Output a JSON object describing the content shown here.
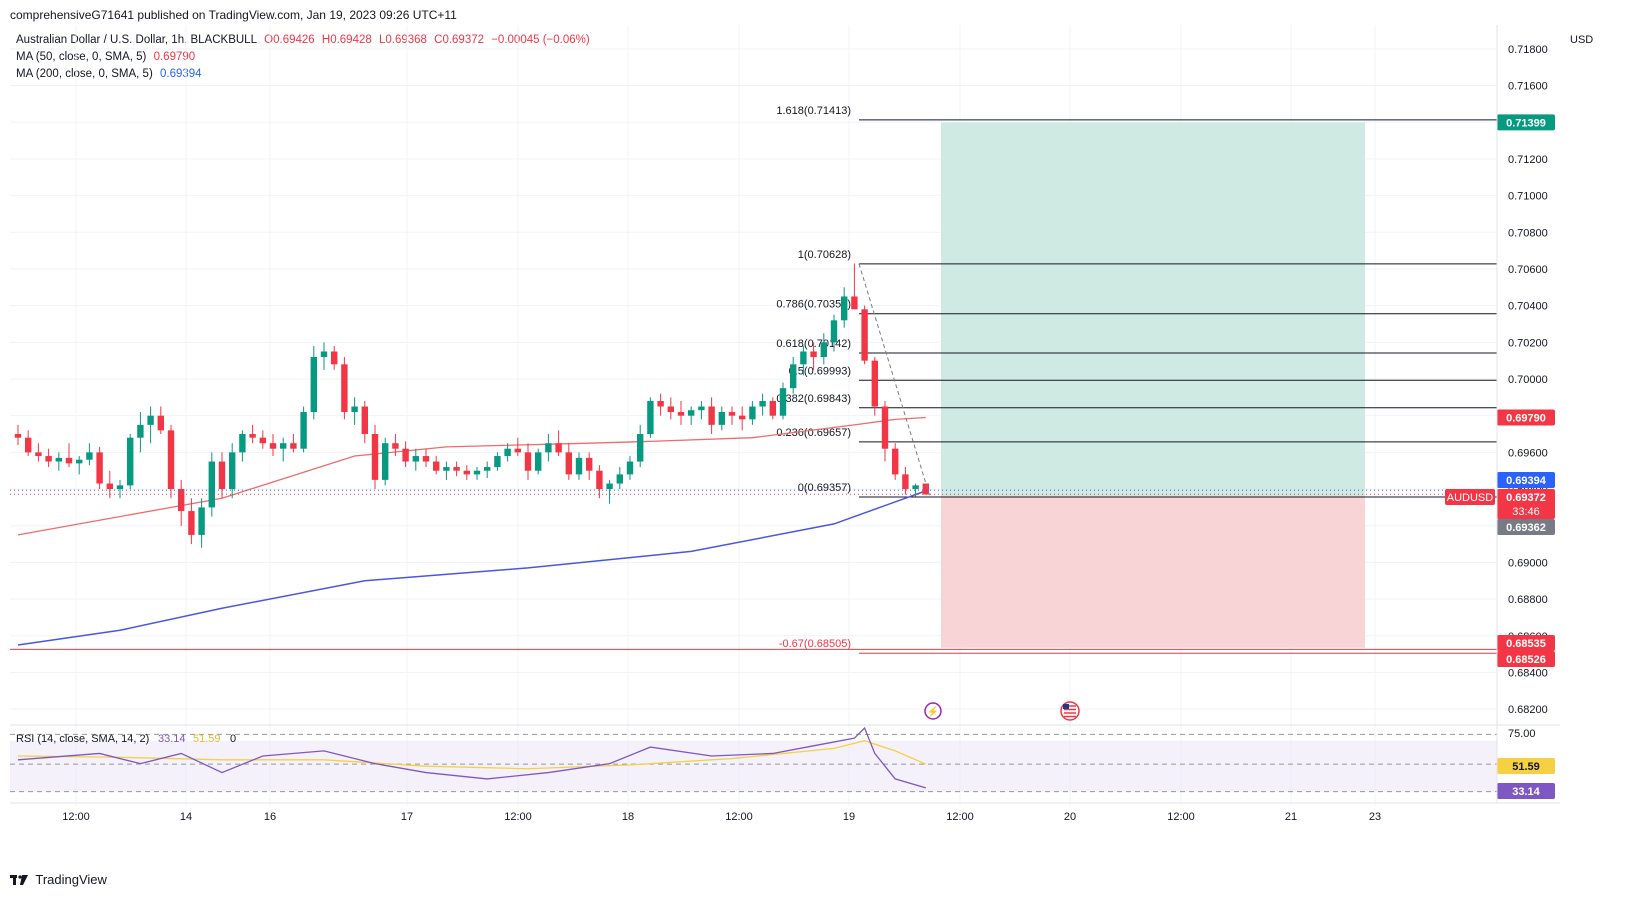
{
  "publisher_line": "comprehensiveG71641 published on TradingView.com, Jan 19, 2023 09:26 UTC+11",
  "legend": {
    "symbol": "Australian Dollar / U.S. Dollar, 1h, BLACKBULL",
    "open": "O0.69426",
    "high": "H0.69428",
    "low": "L0.69368",
    "close": "C0.69372",
    "change": "−0.00045 (−0.06%)",
    "ma50_label": "MA (50, close, 0, SMA, 5)",
    "ma50_value": "0.69790",
    "ma200_label": "MA (200, close, 0, SMA, 5)",
    "ma200_value": "0.69394"
  },
  "currency": "USD",
  "brand": "TradingView",
  "colors": {
    "up": "#089981",
    "down": "#f23645",
    "ma50": "#f06b6b",
    "ma200": "#4a56e2",
    "rsi": "#7e57c2",
    "rsi_ma": "#f5d142",
    "target_zone": "#cfeae3",
    "stop_zone": "#f8d4d7"
  },
  "chart_data": {
    "type": "candlestick",
    "symbol": "AUDUSD",
    "timeframe": "1h",
    "x_tick_labels": [
      "12:00",
      "14",
      "16",
      "17",
      "12:00",
      "18",
      "12:00",
      "19",
      "12:00",
      "20",
      "12:00",
      "21",
      "23"
    ],
    "y_tick_labels": [
      "0.71800",
      "0.71600",
      "0.71400",
      "0.71200",
      "0.71000",
      "0.70800",
      "0.70600",
      "0.70400",
      "0.70200",
      "0.70000",
      "0.69800",
      "0.69600",
      "0.69400",
      "0.69200",
      "0.69000",
      "0.68800",
      "0.68600",
      "0.68400",
      "0.68200"
    ],
    "y_range": [
      0.6813,
      0.7193
    ],
    "candles": [
      [
        0.697,
        0.6975,
        0.6964,
        0.6968
      ],
      [
        0.6968,
        0.6972,
        0.6958,
        0.696
      ],
      [
        0.696,
        0.6965,
        0.6955,
        0.6958
      ],
      [
        0.6958,
        0.6962,
        0.6952,
        0.6955
      ],
      [
        0.6955,
        0.696,
        0.695,
        0.6957
      ],
      [
        0.6957,
        0.6965,
        0.6952,
        0.6954
      ],
      [
        0.6954,
        0.6958,
        0.6948,
        0.6956
      ],
      [
        0.6956,
        0.6965,
        0.6953,
        0.696
      ],
      [
        0.696,
        0.6963,
        0.694,
        0.6943
      ],
      [
        0.6943,
        0.695,
        0.6935,
        0.694
      ],
      [
        0.694,
        0.6945,
        0.6935,
        0.6942
      ],
      [
        0.6942,
        0.697,
        0.694,
        0.6968
      ],
      [
        0.6968,
        0.6982,
        0.696,
        0.6975
      ],
      [
        0.6975,
        0.6985,
        0.6965,
        0.698
      ],
      [
        0.698,
        0.6985,
        0.697,
        0.6972
      ],
      [
        0.6972,
        0.6975,
        0.6935,
        0.694
      ],
      [
        0.694,
        0.6945,
        0.692,
        0.6928
      ],
      [
        0.6928,
        0.6935,
        0.691,
        0.6915
      ],
      [
        0.6915,
        0.6935,
        0.6908,
        0.693
      ],
      [
        0.693,
        0.696,
        0.6925,
        0.6955
      ],
      [
        0.6955,
        0.696,
        0.6935,
        0.694
      ],
      [
        0.694,
        0.6965,
        0.6935,
        0.696
      ],
      [
        0.696,
        0.6972,
        0.6955,
        0.697
      ],
      [
        0.697,
        0.6975,
        0.6965,
        0.6968
      ],
      [
        0.6968,
        0.6972,
        0.6962,
        0.6965
      ],
      [
        0.6965,
        0.697,
        0.6958,
        0.6962
      ],
      [
        0.6962,
        0.6968,
        0.6955,
        0.6965
      ],
      [
        0.6965,
        0.697,
        0.696,
        0.6962
      ],
      [
        0.6962,
        0.6985,
        0.696,
        0.6982
      ],
      [
        0.6982,
        0.7018,
        0.6978,
        0.7012
      ],
      [
        0.7012,
        0.702,
        0.7005,
        0.7015
      ],
      [
        0.7015,
        0.7018,
        0.7005,
        0.7008
      ],
      [
        0.7008,
        0.7012,
        0.6978,
        0.6982
      ],
      [
        0.6982,
        0.699,
        0.6975,
        0.6985
      ],
      [
        0.6985,
        0.6988,
        0.6965,
        0.697
      ],
      [
        0.697,
        0.6975,
        0.694,
        0.6945
      ],
      [
        0.6945,
        0.6968,
        0.6942,
        0.6965
      ],
      [
        0.6965,
        0.697,
        0.6958,
        0.6962
      ],
      [
        0.6962,
        0.6966,
        0.6952,
        0.6955
      ],
      [
        0.6955,
        0.6962,
        0.695,
        0.6958
      ],
      [
        0.6958,
        0.6962,
        0.6952,
        0.6955
      ],
      [
        0.6955,
        0.6958,
        0.6948,
        0.695
      ],
      [
        0.695,
        0.6955,
        0.6945,
        0.6952
      ],
      [
        0.6952,
        0.6955,
        0.6947,
        0.695
      ],
      [
        0.695,
        0.6953,
        0.6945,
        0.6948
      ],
      [
        0.6948,
        0.6952,
        0.6945,
        0.695
      ],
      [
        0.695,
        0.6955,
        0.6946,
        0.6952
      ],
      [
        0.6952,
        0.696,
        0.695,
        0.6958
      ],
      [
        0.6958,
        0.6965,
        0.6955,
        0.6962
      ],
      [
        0.6962,
        0.6968,
        0.6958,
        0.696
      ],
      [
        0.696,
        0.6965,
        0.6945,
        0.695
      ],
      [
        0.695,
        0.6962,
        0.6948,
        0.696
      ],
      [
        0.696,
        0.697,
        0.6955,
        0.6965
      ],
      [
        0.6965,
        0.6972,
        0.6958,
        0.696
      ],
      [
        0.696,
        0.6965,
        0.6945,
        0.6948
      ],
      [
        0.6948,
        0.696,
        0.6945,
        0.6957
      ],
      [
        0.6957,
        0.696,
        0.6945,
        0.695
      ],
      [
        0.695,
        0.6953,
        0.6935,
        0.694
      ],
      [
        0.694,
        0.6945,
        0.6932,
        0.6943
      ],
      [
        0.6943,
        0.6952,
        0.694,
        0.6948
      ],
      [
        0.6948,
        0.6958,
        0.6945,
        0.6955
      ],
      [
        0.6955,
        0.6975,
        0.6952,
        0.697
      ],
      [
        0.697,
        0.699,
        0.6968,
        0.6988
      ],
      [
        0.6988,
        0.6992,
        0.698,
        0.6985
      ],
      [
        0.6985,
        0.699,
        0.6978,
        0.6982
      ],
      [
        0.6982,
        0.6988,
        0.6975,
        0.698
      ],
      [
        0.698,
        0.6985,
        0.6975,
        0.6983
      ],
      [
        0.6983,
        0.6988,
        0.6978,
        0.6985
      ],
      [
        0.6985,
        0.699,
        0.697,
        0.6975
      ],
      [
        0.6975,
        0.6985,
        0.6972,
        0.6982
      ],
      [
        0.6982,
        0.6985,
        0.6975,
        0.698
      ],
      [
        0.698,
        0.6985,
        0.6972,
        0.6978
      ],
      [
        0.6978,
        0.6988,
        0.6975,
        0.6985
      ],
      [
        0.6985,
        0.6992,
        0.698,
        0.6988
      ],
      [
        0.6988,
        0.699,
        0.6978,
        0.698
      ],
      [
        0.698,
        0.6998,
        0.6978,
        0.6995
      ],
      [
        0.6995,
        0.7012,
        0.6992,
        0.7008
      ],
      [
        0.7008,
        0.7018,
        0.7002,
        0.7015
      ],
      [
        0.7015,
        0.702,
        0.7005,
        0.7012
      ],
      [
        0.7012,
        0.7025,
        0.7008,
        0.702
      ],
      [
        0.702,
        0.7035,
        0.7015,
        0.7032
      ],
      [
        0.7032,
        0.705,
        0.7028,
        0.7045
      ],
      [
        0.7045,
        0.7063,
        0.704,
        0.7038
      ],
      [
        0.7038,
        0.704,
        0.7008,
        0.701
      ],
      [
        0.701,
        0.7012,
        0.698,
        0.6985
      ],
      [
        0.6985,
        0.6988,
        0.6955,
        0.6962
      ],
      [
        0.6962,
        0.6965,
        0.6945,
        0.6948
      ],
      [
        0.6948,
        0.6952,
        0.6937,
        0.694
      ],
      [
        0.694,
        0.6943,
        0.6936,
        0.6942
      ],
      [
        0.6943,
        0.6943,
        0.6937,
        0.6937
      ]
    ],
    "ma50": [
      [
        0,
        0.6915
      ],
      [
        20,
        0.6935
      ],
      [
        33,
        0.6958
      ],
      [
        42,
        0.6963
      ],
      [
        56,
        0.6965
      ],
      [
        62,
        0.6966
      ],
      [
        72,
        0.6968
      ],
      [
        82,
        0.6975
      ],
      [
        86,
        0.6978
      ],
      [
        89,
        0.6979
      ]
    ],
    "ma200": [
      [
        0,
        0.6855
      ],
      [
        10,
        0.6863
      ],
      [
        20,
        0.6875
      ],
      [
        34,
        0.689
      ],
      [
        50,
        0.6897
      ],
      [
        66,
        0.6906
      ],
      [
        80,
        0.6921
      ],
      [
        89,
        0.6939
      ]
    ],
    "fibonacci": [
      {
        "ratio": "1.618",
        "value": 0.71413,
        "label": "1.618(0.71413)"
      },
      {
        "ratio": "1",
        "value": 0.70628,
        "label": "1(0.70628)"
      },
      {
        "ratio": "0.786",
        "value": 0.70356,
        "label": "0.786(0.70356)"
      },
      {
        "ratio": "0.618",
        "value": 0.70142,
        "label": "0.618(0.70142)"
      },
      {
        "ratio": "0.5",
        "value": 0.69993,
        "label": "0.5(0.69993)"
      },
      {
        "ratio": "0.382",
        "value": 0.69843,
        "label": "0.382(0.69843)"
      },
      {
        "ratio": "0.236",
        "value": 0.69657,
        "label": "0.236(0.69657)"
      },
      {
        "ratio": "0",
        "value": 0.69357,
        "label": "0(0.69357)"
      },
      {
        "ratio": "-0.67",
        "value": 0.68505,
        "label": "-0.67(0.68505)"
      }
    ],
    "position": {
      "entry": 0.69362,
      "target": 0.71399,
      "stop": 0.68535
    },
    "price_badges": [
      {
        "value": 0.71399,
        "text": "0.71399",
        "color": "#089981"
      },
      {
        "value": 0.6979,
        "text": "0.69790",
        "color": "#f23645"
      },
      {
        "value": 0.69394,
        "text": "0.69394",
        "color": "#2962ff"
      },
      {
        "value": 0.69372,
        "text": "0.69372",
        "sub": "33:46",
        "color": "#f23645",
        "tag": "AUDUSD"
      },
      {
        "value": 0.69362,
        "text": "0.69362",
        "color": "#787b86"
      },
      {
        "value": 0.68535,
        "text": "0.68535",
        "color": "#f23645"
      },
      {
        "value": 0.68526,
        "text": "0.68526",
        "color": "#f23645"
      }
    ],
    "horizontal_line": 0.68526,
    "rsi": {
      "label": "RSI (14, close, SMA, 14, 2)",
      "value": "33.14",
      "ma_value": "51.59",
      "extra": "0",
      "levels": [
        "75.00"
      ],
      "rsi_series": [
        [
          0,
          55
        ],
        [
          8,
          60
        ],
        [
          12,
          52
        ],
        [
          16,
          60
        ],
        [
          20,
          45
        ],
        [
          24,
          58
        ],
        [
          30,
          62
        ],
        [
          35,
          52
        ],
        [
          40,
          45
        ],
        [
          46,
          40
        ],
        [
          52,
          45
        ],
        [
          58,
          52
        ],
        [
          62,
          65
        ],
        [
          68,
          58
        ],
        [
          74,
          60
        ],
        [
          78,
          66
        ],
        [
          82,
          72
        ],
        [
          83,
          80
        ],
        [
          84,
          60
        ],
        [
          86,
          40
        ],
        [
          89,
          33
        ]
      ],
      "ma_series": [
        [
          0,
          58
        ],
        [
          10,
          57
        ],
        [
          20,
          55
        ],
        [
          30,
          55
        ],
        [
          40,
          50
        ],
        [
          50,
          48
        ],
        [
          60,
          51
        ],
        [
          70,
          56
        ],
        [
          80,
          64
        ],
        [
          83,
          70
        ],
        [
          86,
          62
        ],
        [
          89,
          51.6
        ]
      ]
    }
  }
}
